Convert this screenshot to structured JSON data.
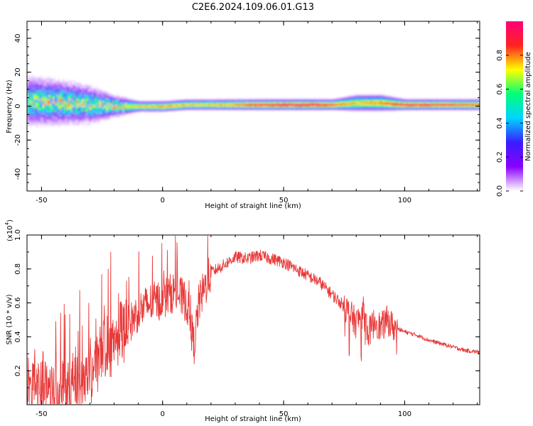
{
  "figure_title": "C2E6.2024.109.06.01.G13",
  "chart_data": [
    {
      "type": "heatmap",
      "title": "",
      "xlabel": "Height of straight line (km)",
      "ylabel": "Frequency (Hz)",
      "xlim": [
        -56,
        131
      ],
      "ylim": [
        -50,
        50
      ],
      "xticks": [
        -50,
        0,
        50,
        100
      ],
      "xtick_labels": [
        "-50",
        "0",
        "50",
        "100"
      ],
      "yticks": [
        -40,
        -20,
        0,
        20,
        40
      ],
      "ytick_labels": [
        "-40",
        "-20",
        "0",
        "20",
        "40"
      ],
      "colorbar": {
        "label": "Normalized spectral amplitude",
        "range": [
          0,
          1
        ],
        "ticks": [
          0.0,
          0.2,
          0.4,
          0.6,
          0.8
        ],
        "tick_labels": [
          "0.0",
          "0.2",
          "0.4",
          "0.6",
          "0.8"
        ],
        "colors": [
          "#ffffff",
          "#8a00ff",
          "#3a1cff",
          "#00d4ff",
          "#00ff7a",
          "#ffff00",
          "#ff2222",
          "#ff007a"
        ]
      },
      "ridge": [
        {
          "x": -50,
          "freq": 3,
          "amp": 0.55,
          "spread": 9
        },
        {
          "x": -40,
          "freq": 2,
          "amp": 0.6,
          "spread": 8
        },
        {
          "x": -30,
          "freq": 1,
          "amp": 0.55,
          "spread": 7
        },
        {
          "x": -20,
          "freq": 0,
          "amp": 0.6,
          "spread": 4
        },
        {
          "x": -10,
          "freq": 0,
          "amp": 0.75,
          "spread": 2
        },
        {
          "x": 0,
          "freq": 0,
          "amp": 0.8,
          "spread": 2
        },
        {
          "x": 10,
          "freq": 1,
          "amp": 0.75,
          "spread": 2
        },
        {
          "x": 20,
          "freq": 1,
          "amp": 0.75,
          "spread": 2
        },
        {
          "x": 30,
          "freq": 1,
          "amp": 0.8,
          "spread": 2
        },
        {
          "x": 40,
          "freq": 1,
          "amp": 0.9,
          "spread": 2
        },
        {
          "x": 50,
          "freq": 1,
          "amp": 0.95,
          "spread": 2
        },
        {
          "x": 60,
          "freq": 1,
          "amp": 0.95,
          "spread": 2
        },
        {
          "x": 70,
          "freq": 1,
          "amp": 0.85,
          "spread": 2
        },
        {
          "x": 80,
          "freq": 2,
          "amp": 0.75,
          "spread": 3
        },
        {
          "x": 90,
          "freq": 2,
          "amp": 0.8,
          "spread": 3
        },
        {
          "x": 100,
          "freq": 1,
          "amp": 0.9,
          "spread": 2
        },
        {
          "x": 110,
          "freq": 1,
          "amp": 0.9,
          "spread": 2
        },
        {
          "x": 120,
          "freq": 1,
          "amp": 0.85,
          "spread": 2
        },
        {
          "x": 130,
          "freq": 1,
          "amp": 0.85,
          "spread": 2
        }
      ]
    },
    {
      "type": "line",
      "title": "",
      "xlabel": "Height of straight line (km)",
      "ylabel": "SNR (10 * v/v)",
      "y_multiplier_label": "(x10",
      "y_multiplier_exponent": "4",
      "y_multiplier_close": ")",
      "xlim": [
        -56,
        131
      ],
      "ylim": [
        0,
        1.0
      ],
      "xticks": [
        -50,
        0,
        50,
        100
      ],
      "xtick_labels": [
        "-50",
        "0",
        "50",
        "100"
      ],
      "yticks": [
        0.2,
        0.4,
        0.6,
        0.8,
        1.0
      ],
      "ytick_labels": [
        "0.2",
        "0.4",
        "0.6",
        "0.8",
        "1.0"
      ],
      "line_color": "#e83a3a",
      "series": [
        {
          "x": [
            -56,
            -50,
            -45,
            -40,
            -35,
            -30,
            -25,
            -20,
            -15,
            -10,
            -5,
            0,
            5,
            10,
            13,
            15,
            20,
            25,
            30,
            35,
            40,
            45,
            50,
            55,
            60,
            65,
            70,
            75,
            78,
            80,
            83,
            85,
            88,
            90,
            93,
            95,
            100,
            105,
            110,
            115,
            120,
            125,
            131
          ],
          "y": [
            0.12,
            0.12,
            0.1,
            0.11,
            0.14,
            0.2,
            0.3,
            0.4,
            0.45,
            0.55,
            0.6,
            0.62,
            0.67,
            0.6,
            0.35,
            0.6,
            0.78,
            0.82,
            0.87,
            0.86,
            0.88,
            0.86,
            0.84,
            0.8,
            0.76,
            0.72,
            0.65,
            0.58,
            0.52,
            0.48,
            0.55,
            0.42,
            0.5,
            0.45,
            0.5,
            0.46,
            0.43,
            0.41,
            0.38,
            0.36,
            0.34,
            0.32,
            0.31
          ]
        }
      ]
    }
  ]
}
